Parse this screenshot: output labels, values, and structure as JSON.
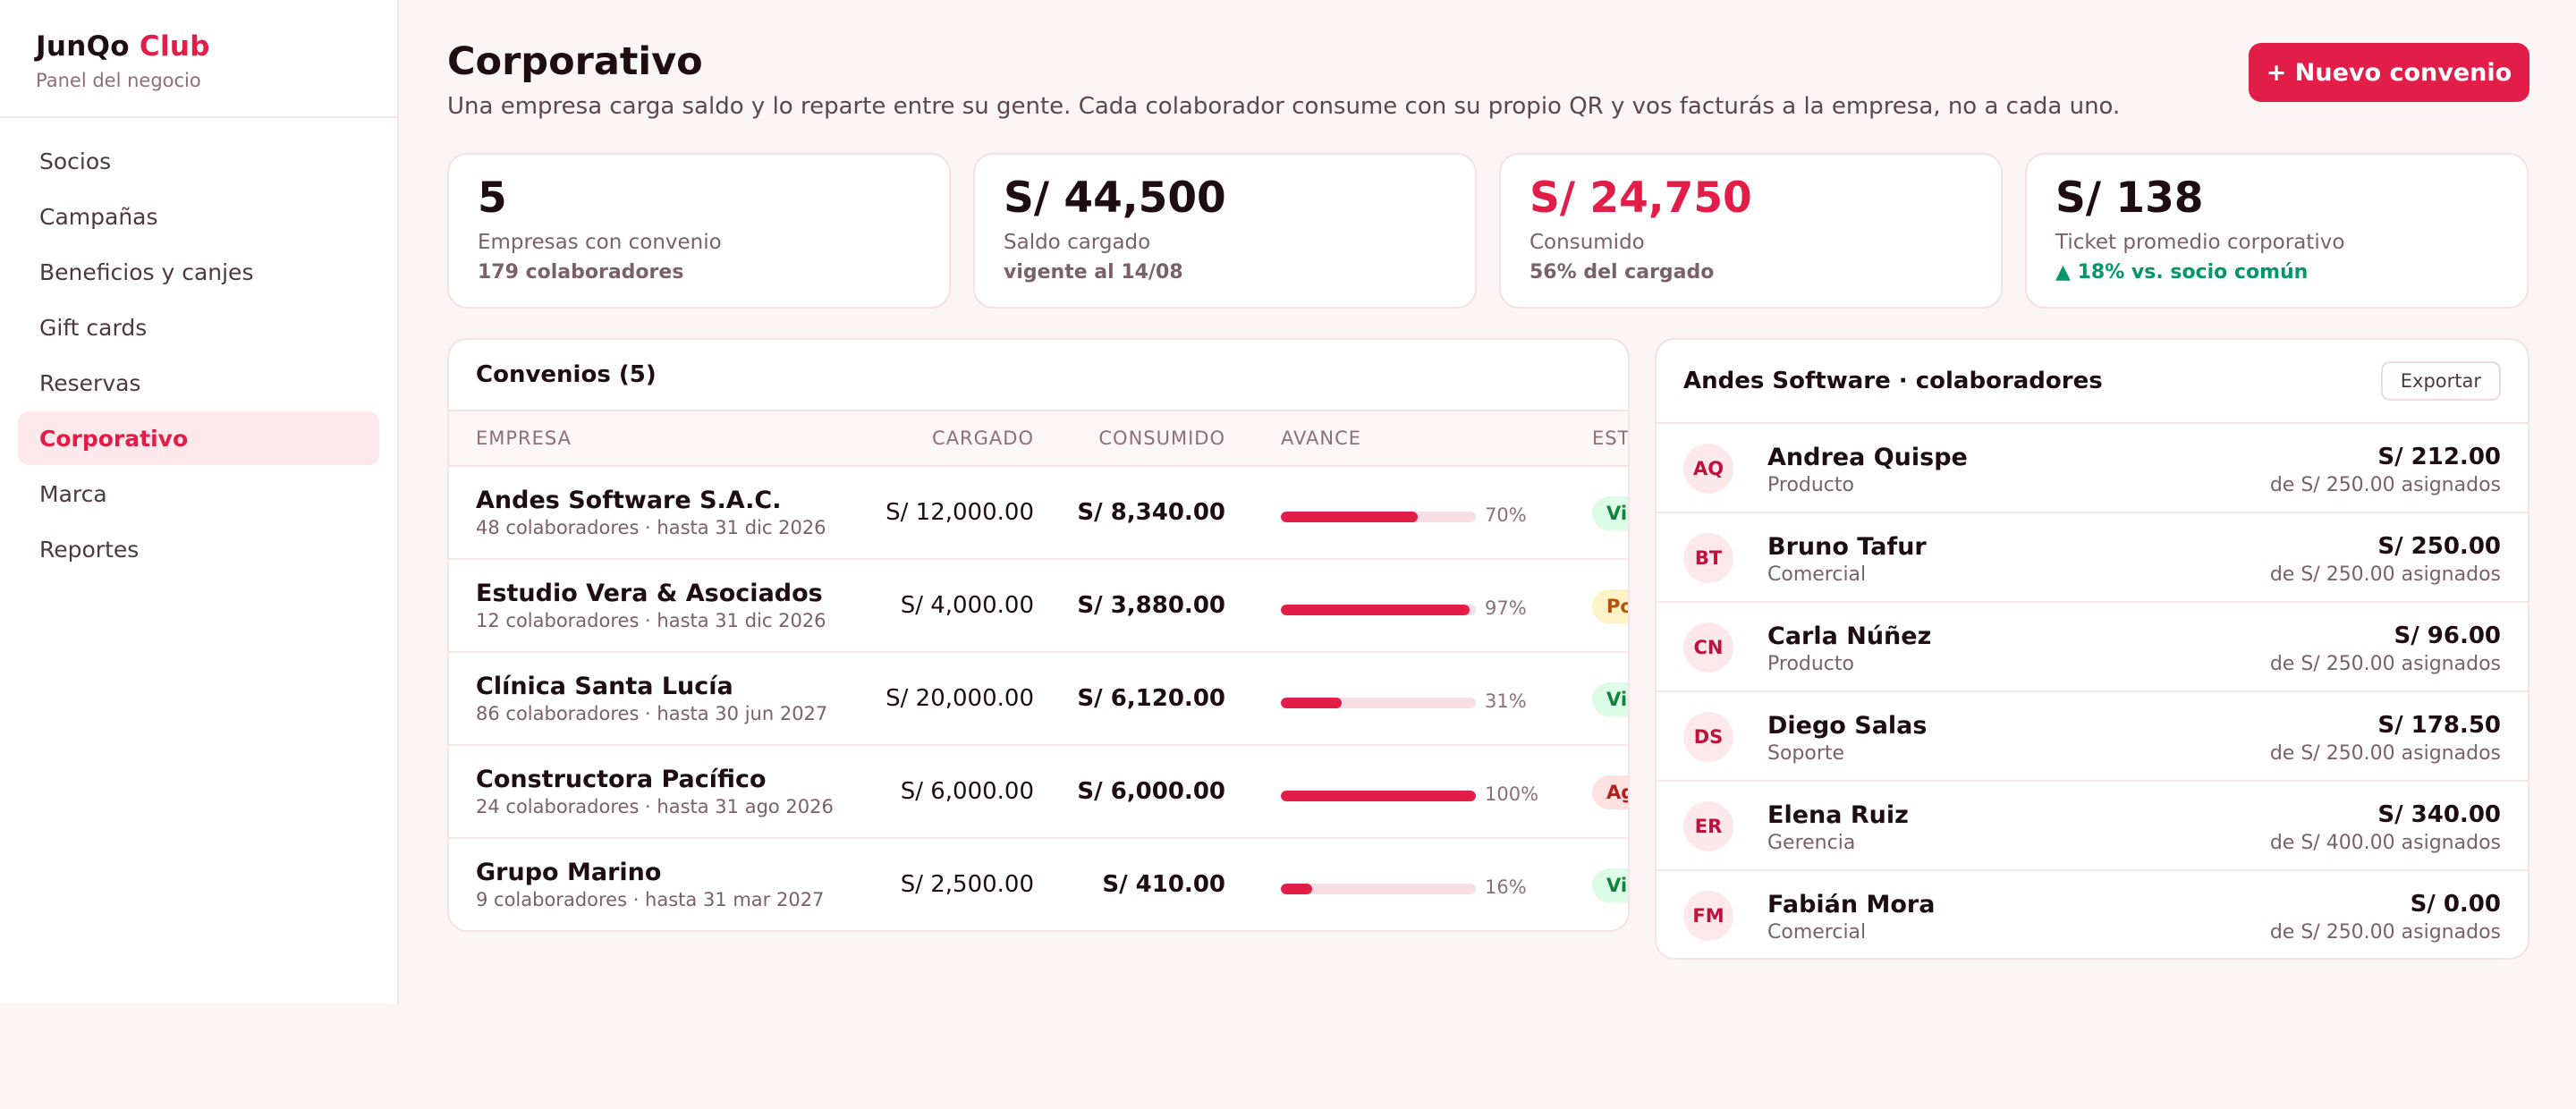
{
  "brand": {
    "name": "JunQo",
    "accent": "Club",
    "subtitle": "Panel del negocio"
  },
  "nav": [
    {
      "label": "Socios",
      "active": false
    },
    {
      "label": "Campañas",
      "active": false
    },
    {
      "label": "Beneficios y canjes",
      "active": false
    },
    {
      "label": "Gift cards",
      "active": false
    },
    {
      "label": "Reservas",
      "active": false
    },
    {
      "label": "Corporativo",
      "active": true
    },
    {
      "label": "Marca",
      "active": false
    },
    {
      "label": "Reportes",
      "active": false
    }
  ],
  "header": {
    "title": "Corporativo",
    "description": "Una empresa carga saldo y lo reparte entre su gente. Cada colaborador consume con su propio QR y vos facturás a la empresa, no a cada uno.",
    "new_button": "+ Nuevo convenio"
  },
  "stats": [
    {
      "value": "5",
      "label": "Empresas con convenio",
      "note": "179 colaboradores"
    },
    {
      "value": "S/ 44,500",
      "label": "Saldo cargado",
      "note": "vigente al 14/08"
    },
    {
      "value": "S/ 24,750",
      "label": "Consumido",
      "note": "56% del cargado"
    },
    {
      "value": "S/ 138",
      "label": "Ticket promedio corporativo",
      "note": "▲ 18% vs. socio común"
    }
  ],
  "agreements": {
    "title": "Convenios (5)",
    "columns": {
      "company": "EMPRESA",
      "loaded": "CARGADO",
      "consumed": "CONSUMIDO",
      "progress": "AVANCE",
      "status": "ESTADO"
    },
    "rows": [
      {
        "company": "Andes Software S.A.C.",
        "meta": "48 colaboradores · hasta 31 dic 2026",
        "loaded": "S/ 12,000.00",
        "consumed": "S/ 8,340.00",
        "progress": 0.7,
        "progress_label": "70%",
        "status": "Vigente",
        "status_tone": "green"
      },
      {
        "company": "Estudio Vera & Asociados",
        "meta": "12 colaboradores · hasta 31 dic 2026",
        "loaded": "S/ 4,000.00",
        "consumed": "S/ 3,880.00",
        "progress": 0.97,
        "progress_label": "97%",
        "status": "Por recargar",
        "status_tone": "amber"
      },
      {
        "company": "Clínica Santa Lucía",
        "meta": "86 colaboradores · hasta 30 jun 2027",
        "loaded": "S/ 20,000.00",
        "consumed": "S/ 6,120.00",
        "progress": 0.31,
        "progress_label": "31%",
        "status": "Vigente",
        "status_tone": "green"
      },
      {
        "company": "Constructora Pacífico",
        "meta": "24 colaboradores · hasta 31 ago 2026",
        "loaded": "S/ 6,000.00",
        "consumed": "S/ 6,000.00",
        "progress": 1.0,
        "progress_label": "100%",
        "status": "Agotado",
        "status_tone": "red"
      },
      {
        "company": "Grupo Marino",
        "meta": "9 colaboradores · hasta 31 mar 2027",
        "loaded": "S/ 2,500.00",
        "consumed": "S/ 410.00",
        "progress": 0.16,
        "progress_label": "16%",
        "status": "Vigente",
        "status_tone": "green"
      }
    ]
  },
  "employees": {
    "title": "Andes Software · colaboradores",
    "export_label": "Exportar",
    "rows": [
      {
        "initials": "AQ",
        "name": "Andrea Quispe",
        "role": "Producto",
        "amount": "S/ 212.00",
        "assigned": "de S/ 250.00 asignados"
      },
      {
        "initials": "BT",
        "name": "Bruno Tafur",
        "role": "Comercial",
        "amount": "S/ 250.00",
        "assigned": "de S/ 250.00 asignados"
      },
      {
        "initials": "CN",
        "name": "Carla Núñez",
        "role": "Producto",
        "amount": "S/ 96.00",
        "assigned": "de S/ 250.00 asignados"
      },
      {
        "initials": "DS",
        "name": "Diego Salas",
        "role": "Soporte",
        "amount": "S/ 178.50",
        "assigned": "de S/ 250.00 asignados"
      },
      {
        "initials": "ER",
        "name": "Elena Ruiz",
        "role": "Gerencia",
        "amount": "S/ 340.00",
        "assigned": "de S/ 400.00 asignados"
      },
      {
        "initials": "FM",
        "name": "Fabián Mora",
        "role": "Comercial",
        "amount": "S/ 0.00",
        "assigned": "de S/ 250.00 asignados"
      }
    ]
  },
  "colors": {
    "accent": "#e11d48",
    "positive": "#059669",
    "background": "#fcf5f5"
  }
}
